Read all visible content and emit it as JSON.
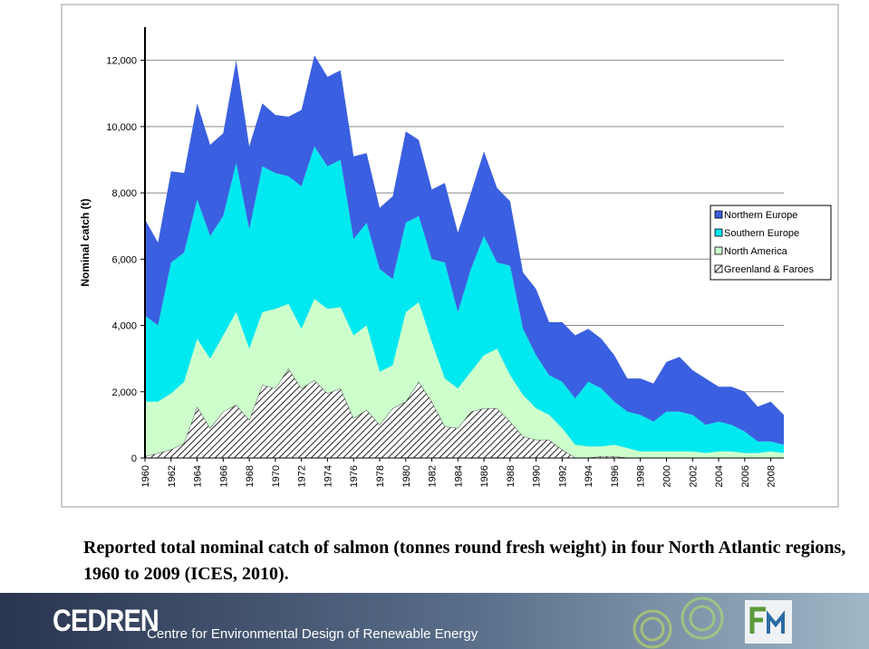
{
  "chart_data": {
    "type": "stacked-area",
    "y_label": "Nominal catch (t)",
    "x": [
      1960,
      1961,
      1962,
      1963,
      1964,
      1965,
      1966,
      1967,
      1968,
      1969,
      1970,
      1971,
      1972,
      1973,
      1974,
      1975,
      1976,
      1977,
      1978,
      1979,
      1980,
      1981,
      1982,
      1983,
      1984,
      1985,
      1986,
      1987,
      1988,
      1989,
      1990,
      1991,
      1992,
      1993,
      1994,
      1995,
      1996,
      1997,
      1998,
      1999,
      2000,
      2001,
      2002,
      2003,
      2004,
      2005,
      2006,
      2007,
      2008,
      2009
    ],
    "xlim": [
      1960,
      2009
    ],
    "xticks": [
      1960,
      1962,
      1964,
      1966,
      1968,
      1970,
      1972,
      1974,
      1976,
      1978,
      1980,
      1982,
      1984,
      1986,
      1988,
      1990,
      1992,
      1994,
      1996,
      1998,
      2000,
      2002,
      2004,
      2006,
      2008
    ],
    "ylim": [
      0,
      13000
    ],
    "yticks": [
      0,
      {
        "value": 2000,
        "label": "2,000"
      },
      {
        "value": 4000,
        "label": "4,000"
      },
      {
        "value": 6000,
        "label": "6,000"
      },
      {
        "value": 8000,
        "label": "8,000"
      },
      {
        "value": 10000,
        "label": "10,000"
      },
      {
        "value": 12000,
        "label": "12,000"
      }
    ],
    "grid": true,
    "legend": "right",
    "series": [
      {
        "name": "Northern Europe",
        "color": "#3a5fe0",
        "values": [
          2900,
          2500,
          2750,
          2400,
          2900,
          2750,
          2500,
          3100,
          2500,
          1900,
          1750,
          1800,
          2300,
          2750,
          2700,
          2700,
          2500,
          2100,
          1850,
          2500,
          2750,
          2300,
          2100,
          2400,
          2400,
          2300,
          2550,
          2250,
          1950,
          1700,
          2000,
          1600,
          1800,
          1900,
          1600,
          1500,
          1400,
          1000,
          1100,
          1150,
          1500,
          1650,
          1350,
          1400,
          1050,
          1150,
          1200,
          1050,
          1200,
          900
        ]
      },
      {
        "name": "Southern Europe",
        "color": "#00e8f0",
        "values": [
          2600,
          2300,
          3950,
          3900,
          4200,
          3700,
          3600,
          4500,
          3600,
          4400,
          4100,
          3850,
          4300,
          4600,
          4300,
          4450,
          2900,
          3100,
          3100,
          2600,
          2700,
          2600,
          2500,
          3500,
          2300,
          3100,
          3600,
          2600,
          3300,
          2000,
          1600,
          1200,
          1400,
          1400,
          1950,
          1750,
          1300,
          1100,
          1100,
          900,
          1200,
          1200,
          1100,
          850,
          900,
          800,
          650,
          350,
          300,
          250
        ]
      },
      {
        "name": "North America",
        "color": "#ccffcc",
        "values": [
          1650,
          1550,
          1700,
          1850,
          2050,
          2100,
          2300,
          2800,
          2150,
          2200,
          2400,
          1950,
          1800,
          2450,
          2550,
          2450,
          2500,
          2550,
          1600,
          1300,
          2700,
          2400,
          1800,
          1450,
          1200,
          1200,
          1600,
          1800,
          1400,
          1250,
          950,
          750,
          650,
          390,
          340,
          300,
          350,
          290,
          200,
          200,
          200,
          200,
          200,
          150,
          200,
          200,
          150,
          150,
          200,
          150
        ]
      },
      {
        "name": "Greenland & Faroes",
        "color": "#333333",
        "pattern": "hatch",
        "values": [
          50,
          150,
          250,
          450,
          1550,
          900,
          1400,
          1600,
          1150,
          2200,
          2100,
          2700,
          2100,
          2350,
          1950,
          2100,
          1200,
          1450,
          1000,
          1500,
          1700,
          2300,
          1700,
          950,
          900,
          1400,
          1500,
          1500,
          1100,
          650,
          550,
          550,
          250,
          10,
          10,
          50,
          50,
          10,
          0,
          0,
          0,
          0,
          0,
          0,
          0,
          0,
          0,
          0,
          0,
          0
        ]
      }
    ]
  },
  "caption": "Reported total nominal catch of salmon (tonnes round fresh weight) in four North Atlantic regions, 1960 to 2009 (ICES, 2010).",
  "footer": {
    "brand": "CEDREN",
    "tagline": "Centre for Environmental Design of Renewable Energy"
  }
}
